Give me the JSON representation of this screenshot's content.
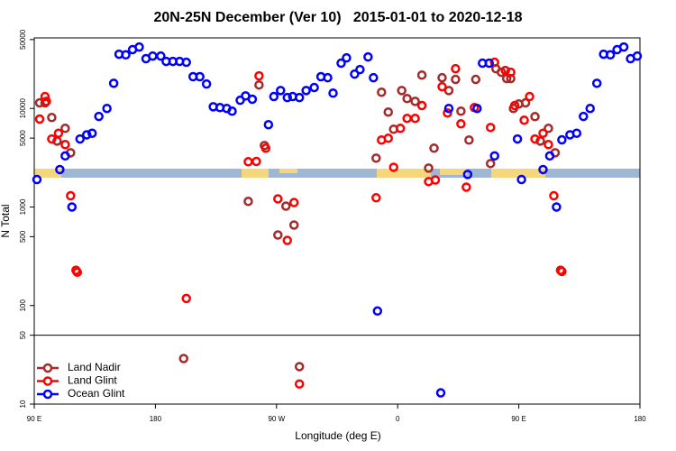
{
  "chart_data": {
    "type": "scatter",
    "title": "20N-25N December (Ver 10)   2015-01-01 to 2020-12-18",
    "xlabel": "Longitude (deg E)",
    "ylabel": "N Total",
    "log_y": true,
    "legend": "bottom left",
    "reference_line": 50,
    "xlim": [
      90,
      540
    ],
    "ylim": [
      10,
      52000
    ],
    "xticks": [
      {
        "value": 90,
        "label": "90 E"
      },
      {
        "value": 180,
        "label": "180"
      },
      {
        "value": 270,
        "label": "90 W"
      },
      {
        "value": 360,
        "label": "0"
      },
      {
        "value": 450,
        "label": "90 E"
      },
      {
        "value": 540,
        "label": "180"
      }
    ],
    "yticks": [
      10,
      50,
      100,
      500,
      1000,
      5000,
      10000,
      50000
    ],
    "series": [
      {
        "name": "Land Nadir",
        "color": "#a52a2a",
        "x": [
          94,
          98,
          103,
          107,
          113,
          117,
          249,
          257,
          261,
          271,
          277,
          283,
          201,
          287,
          344,
          348,
          353,
          357,
          363,
          367,
          373,
          378,
          383,
          387,
          393,
          398,
          403,
          407,
          413,
          418,
          429,
          433,
          437,
          441,
          444,
          446,
          450,
          455,
          462,
          466,
          472,
          477
        ],
        "y": [
          11400,
          11400,
          8090,
          4670,
          6280,
          3550,
          1140,
          17300,
          4200,
          520,
          1020,
          656,
          29,
          24,
          3130,
          14600,
          9190,
          6150,
          15200,
          12600,
          11800,
          21800,
          2480,
          3950,
          20500,
          15200,
          19700,
          9380,
          4780,
          19700,
          2760,
          25300,
          23300,
          20100,
          20100,
          10000,
          11100,
          11400,
          8260,
          4670,
          6280,
          3550
        ]
      },
      {
        "name": "Land Glint",
        "color": "#ff0000",
        "x": [
          94,
          98,
          99,
          103,
          108,
          113,
          117,
          121,
          122,
          203,
          249,
          255,
          257,
          262,
          271,
          278,
          283,
          344,
          348,
          353,
          357,
          362,
          367,
          373,
          378,
          383,
          388,
          393,
          397,
          403,
          407,
          411,
          417,
          429,
          432,
          440,
          444,
          447,
          454,
          458,
          462,
          468,
          472,
          476,
          481,
          482,
          287
        ],
        "y": [
          7800,
          13200,
          11800,
          4900,
          5600,
          4300,
          1300,
          228,
          218,
          118,
          2880,
          2900,
          21400,
          3950,
          1210,
          458,
          1110,
          1240,
          4780,
          4980,
          2530,
          6280,
          7930,
          7930,
          10700,
          1810,
          1880,
          16600,
          9000,
          25300,
          6980,
          1590,
          10200,
          6410,
          29400,
          24300,
          23300,
          10700,
          7600,
          13200,
          4900,
          5600,
          4300,
          1300,
          228,
          222,
          16
        ]
      },
      {
        "name": "Ocean Glint",
        "color": "#0000ff",
        "x": [
          92,
          109,
          113,
          118,
          124,
          129,
          133,
          138,
          144,
          149,
          153,
          158,
          163,
          168,
          173,
          178,
          184,
          188,
          193,
          198,
          203,
          208,
          213,
          218,
          223,
          228,
          233,
          237,
          243,
          247,
          252,
          264,
          268,
          273,
          278,
          282,
          287,
          292,
          298,
          303,
          308,
          312,
          318,
          322,
          328,
          332,
          338,
          342,
          345,
          398,
          392,
          412,
          419,
          423,
          428,
          432,
          449,
          452,
          468,
          473,
          478,
          482,
          488,
          493,
          498,
          503,
          508,
          513,
          518,
          523,
          528,
          533,
          538
        ],
        "y": [
          1900,
          2400,
          3300,
          1000,
          4900,
          5400,
          5600,
          8300,
          10000,
          18000,
          35500,
          35000,
          39500,
          42000,
          32000,
          34000,
          34000,
          30000,
          30000,
          30000,
          29400,
          21000,
          21000,
          17700,
          10400,
          10200,
          10000,
          9380,
          12100,
          13400,
          12400,
          6840,
          13200,
          15200,
          12900,
          13200,
          12900,
          15200,
          16300,
          21000,
          20500,
          14300,
          28800,
          32600,
          22300,
          24800,
          33300,
          20500,
          88,
          10000,
          13,
          2140,
          10000,
          28800,
          28800,
          3300,
          4900,
          1900,
          2400,
          3300,
          1000,
          4800,
          5400,
          5600,
          8300,
          10000,
          18000,
          35500,
          35000,
          39500,
          42000,
          32000,
          34000
        ]
      }
    ]
  }
}
